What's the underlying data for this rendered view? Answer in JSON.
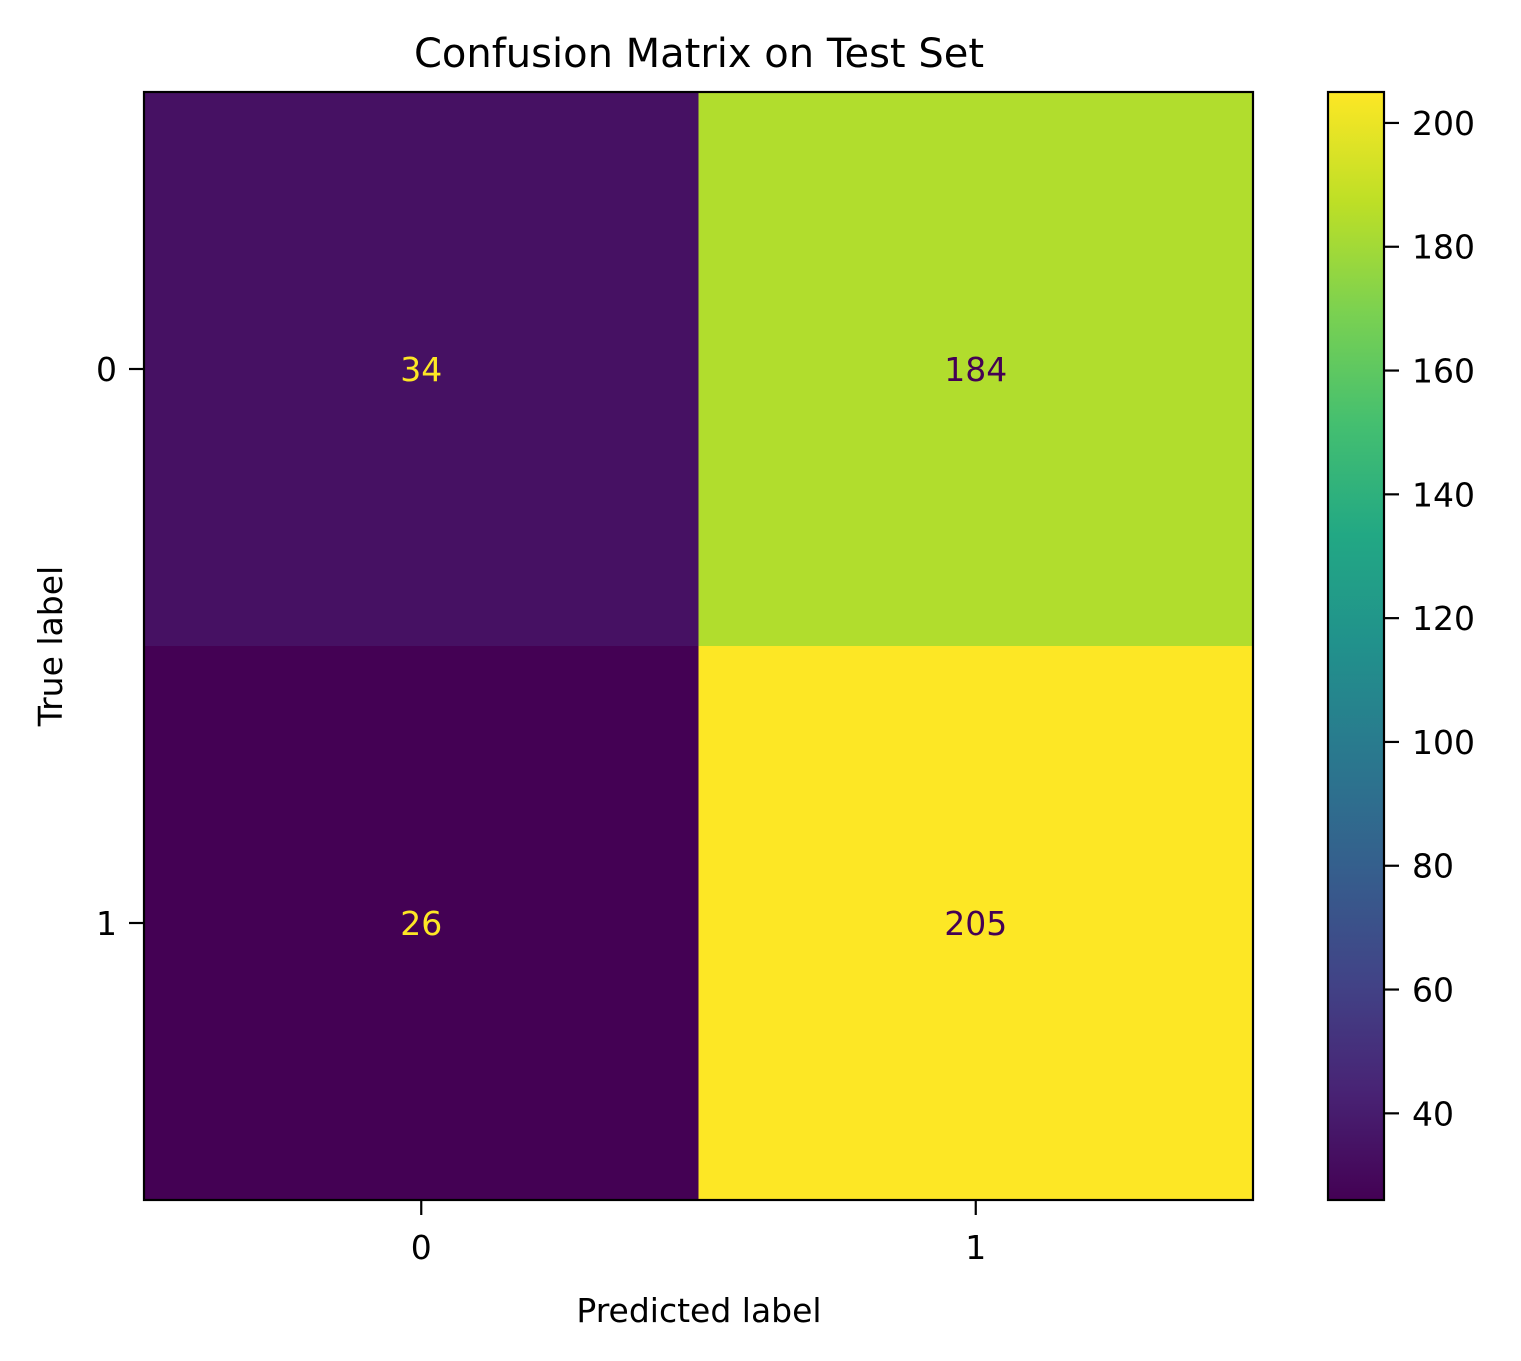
{
  "chart_data": {
    "type": "heatmap",
    "title": "Confusion Matrix on Test Set",
    "xlabel": "Predicted label",
    "ylabel": "True label",
    "x_categories": [
      "0",
      "1"
    ],
    "y_categories": [
      "0",
      "1"
    ],
    "matrix": [
      [
        34,
        184
      ],
      [
        26,
        205
      ]
    ],
    "colormap": "viridis",
    "colorbar": {
      "range": [
        26,
        205
      ],
      "ticks": [
        40,
        60,
        80,
        100,
        120,
        140,
        160,
        180,
        200
      ]
    },
    "grid": false,
    "colors": {
      "low_text": "#fde725",
      "high_text": "#440154",
      "frame": "#000000"
    }
  }
}
